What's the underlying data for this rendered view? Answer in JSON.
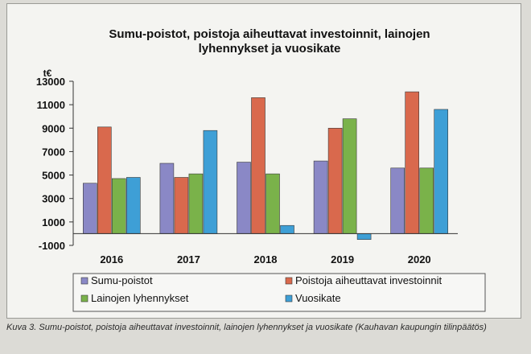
{
  "caption": "Kuva 3. Sumu-poistot, poistoja aiheuttavat investoinnit, lainojen lyhennykset ja vuosikate (Kauhavan kaupungin tilinpäätös)",
  "chart_data": {
    "type": "bar",
    "title_lines": [
      "Sumu-poistot, poistoja aiheuttavat investoinnit, lainojen",
      "lyhennykset ja vuosikate"
    ],
    "unit": "t€",
    "categories": [
      "2016",
      "2017",
      "2018",
      "2019",
      "2020"
    ],
    "ylim": [
      -1000,
      13000
    ],
    "yticks": [
      13000,
      11000,
      9000,
      7000,
      5000,
      3000,
      1000,
      -1000
    ],
    "grid": false,
    "legend_position": "bottom",
    "series": [
      {
        "name": "Sumu-poistot",
        "color": "#8a88c6",
        "values": [
          4300,
          6000,
          6100,
          6200,
          5600
        ]
      },
      {
        "name": "Poistoja aiheuttavat investoinnit",
        "color": "#d9694d",
        "values": [
          9100,
          4800,
          11600,
          9000,
          12100
        ]
      },
      {
        "name": "Lainojen lyhennykset",
        "color": "#7ab24a",
        "values": [
          4700,
          5100,
          5100,
          9800,
          5600
        ]
      },
      {
        "name": "Vuosikate",
        "color": "#3e9fd6",
        "values": [
          4800,
          8800,
          700,
          -500,
          10600
        ]
      }
    ]
  }
}
